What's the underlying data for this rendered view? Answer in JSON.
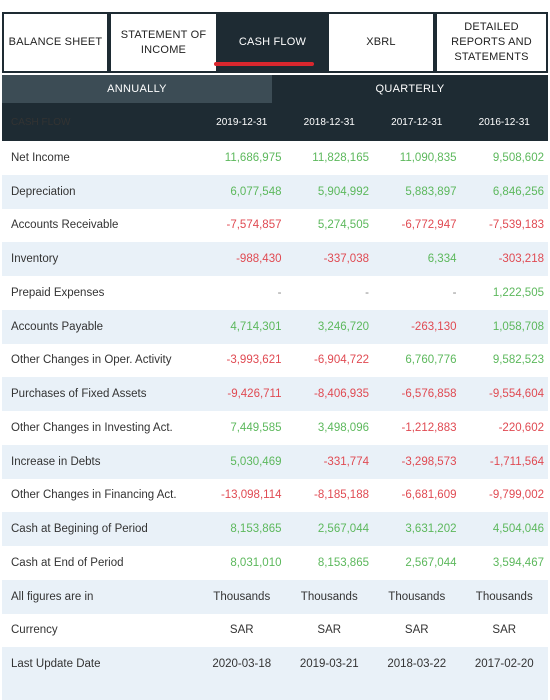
{
  "tabs": [
    {
      "label": "BALANCE SHEET",
      "active": false
    },
    {
      "label": "STATEMENT OF\nINCOME",
      "active": false
    },
    {
      "label": "CASH FLOW",
      "active": true
    },
    {
      "label": "XBRL",
      "active": false
    },
    {
      "label": "DETAILED\nREPORTS AND\nSTATEMENTS",
      "active": false
    }
  ],
  "period": {
    "annually": "ANNUALLY",
    "quarterly": "QUARTERLY"
  },
  "table": {
    "header": [
      "CASH FLOW",
      "2019-12-31",
      "2018-12-31",
      "2017-12-31",
      "2016-12-31"
    ],
    "rows": [
      {
        "label": "Net Income",
        "values": [
          "11,686,975",
          "11,828,165",
          "11,090,835",
          "9,508,602"
        ]
      },
      {
        "label": "Depreciation",
        "values": [
          "6,077,548",
          "5,904,992",
          "5,883,897",
          "6,846,256"
        ]
      },
      {
        "label": "Accounts Receivable",
        "values": [
          "-7,574,857",
          "5,274,505",
          "-6,772,947",
          "-7,539,183"
        ]
      },
      {
        "label": "Inventory",
        "values": [
          "-988,430",
          "-337,038",
          "6,334",
          "-303,218"
        ]
      },
      {
        "label": "Prepaid Expenses",
        "values": [
          "-",
          "-",
          "-",
          "1,222,505"
        ]
      },
      {
        "label": "Accounts Payable",
        "values": [
          "4,714,301",
          "3,246,720",
          "-263,130",
          "1,058,708"
        ]
      },
      {
        "label": "Other Changes in Oper. Activity",
        "values": [
          "-3,993,621",
          "-6,904,722",
          "6,760,776",
          "9,582,523"
        ]
      },
      {
        "label": "Purchases of Fixed Assets",
        "values": [
          "-9,426,711",
          "-8,406,935",
          "-6,576,858",
          "-9,554,604"
        ]
      },
      {
        "label": "Other Changes in Investing Act.",
        "values": [
          "7,449,585",
          "3,498,096",
          "-1,212,883",
          "-220,602"
        ]
      },
      {
        "label": "Increase in Debts",
        "values": [
          "5,030,469",
          "-331,774",
          "-3,298,573",
          "-1,711,564"
        ]
      },
      {
        "label": "Other Changes in Financing Act.",
        "values": [
          "-13,098,114",
          "-8,185,188",
          "-6,681,609",
          "-9,799,002"
        ]
      },
      {
        "label": "Cash at Begining of Period",
        "values": [
          "8,153,865",
          "2,567,044",
          "3,631,202",
          "4,504,046"
        ]
      },
      {
        "label": "Cash at End of Period",
        "values": [
          "8,031,010",
          "8,153,865",
          "2,567,044",
          "3,594,467"
        ]
      }
    ],
    "info_rows": [
      {
        "label": "All figures are in",
        "values": [
          "Thousands",
          "Thousands",
          "Thousands",
          "Thousands"
        ]
      },
      {
        "label": "Currency",
        "values": [
          "SAR",
          "SAR",
          "SAR",
          "SAR"
        ]
      },
      {
        "label": "Last Update Date",
        "values": [
          "2020-03-18",
          "2019-03-21",
          "2018-03-22",
          "2017-02-20"
        ]
      }
    ]
  },
  "colors": {
    "positive": "#5cb85c",
    "negative": "#e04a52",
    "header_bg": "#1e2b33",
    "accent_underline": "#d9272e"
  }
}
